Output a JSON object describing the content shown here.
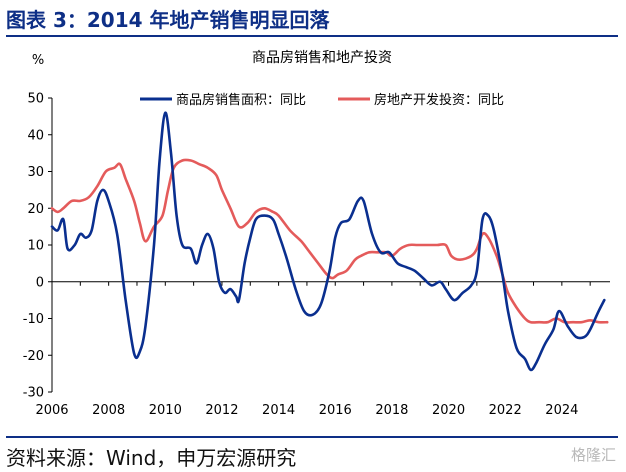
{
  "figure_title": "图表 3：2014 年地产销售明显回落",
  "source_note": "资料来源：Wind，申万宏源研究",
  "watermark": "格隆汇",
  "chart_data": {
    "type": "line",
    "title": "商品房销售和地产投资",
    "ylabel": "%",
    "xlabel": "",
    "ylim": [
      -30,
      50
    ],
    "xlim": [
      2006,
      2025.7
    ],
    "yticks": [
      50,
      40,
      30,
      20,
      10,
      0,
      -10,
      -20,
      -30
    ],
    "xticks": [
      "2006",
      "2008",
      "2010",
      "2012",
      "2014",
      "2016",
      "2018",
      "2020",
      "2022",
      "2024"
    ],
    "grid": false,
    "legend_position": "top",
    "colors": {
      "sales": "#0a2f8f",
      "investment": "#e45b5b",
      "axis": "#000000",
      "title_blue": "#0e2f86"
    },
    "series": [
      {
        "name": "商品房销售面积：同比",
        "points": [
          [
            2006.0,
            15
          ],
          [
            2006.2,
            14
          ],
          [
            2006.4,
            17
          ],
          [
            2006.55,
            9
          ],
          [
            2006.8,
            10
          ],
          [
            2007.0,
            13
          ],
          [
            2007.2,
            12
          ],
          [
            2007.4,
            14
          ],
          [
            2007.6,
            22
          ],
          [
            2007.8,
            25
          ],
          [
            2008.0,
            22
          ],
          [
            2008.3,
            13
          ],
          [
            2008.6,
            -5
          ],
          [
            2008.9,
            -19.5
          ],
          [
            2009.1,
            -19
          ],
          [
            2009.3,
            -12
          ],
          [
            2009.6,
            10
          ],
          [
            2009.8,
            33
          ],
          [
            2010.0,
            46
          ],
          [
            2010.2,
            35
          ],
          [
            2010.4,
            18
          ],
          [
            2010.6,
            10
          ],
          [
            2010.9,
            9
          ],
          [
            2011.1,
            5
          ],
          [
            2011.3,
            10
          ],
          [
            2011.5,
            13
          ],
          [
            2011.7,
            9
          ],
          [
            2011.9,
            0
          ],
          [
            2012.1,
            -3
          ],
          [
            2012.3,
            -2
          ],
          [
            2012.5,
            -4
          ],
          [
            2012.6,
            -5
          ],
          [
            2012.8,
            5
          ],
          [
            2013.0,
            12
          ],
          [
            2013.2,
            17
          ],
          [
            2013.5,
            18
          ],
          [
            2013.8,
            17
          ],
          [
            2014.0,
            13
          ],
          [
            2014.3,
            6
          ],
          [
            2014.6,
            -2
          ],
          [
            2014.9,
            -8
          ],
          [
            2015.2,
            -9
          ],
          [
            2015.5,
            -6
          ],
          [
            2015.8,
            3
          ],
          [
            2016.0,
            12
          ],
          [
            2016.2,
            16
          ],
          [
            2016.5,
            17
          ],
          [
            2016.8,
            22
          ],
          [
            2017.0,
            22
          ],
          [
            2017.3,
            13
          ],
          [
            2017.6,
            8
          ],
          [
            2017.9,
            8
          ],
          [
            2018.2,
            5
          ],
          [
            2018.5,
            4
          ],
          [
            2018.8,
            3
          ],
          [
            2019.1,
            1
          ],
          [
            2019.4,
            -1
          ],
          [
            2019.7,
            0
          ],
          [
            2019.9,
            -2
          ],
          [
            2020.2,
            -5
          ],
          [
            2020.5,
            -3
          ],
          [
            2020.8,
            -1
          ],
          [
            2021.0,
            3
          ],
          [
            2021.2,
            17
          ],
          [
            2021.4,
            18
          ],
          [
            2021.6,
            14
          ],
          [
            2021.9,
            2
          ],
          [
            2022.1,
            -8
          ],
          [
            2022.4,
            -18
          ],
          [
            2022.7,
            -21
          ],
          [
            2022.9,
            -24
          ],
          [
            2023.1,
            -22
          ],
          [
            2023.4,
            -17
          ],
          [
            2023.7,
            -13
          ],
          [
            2023.9,
            -8
          ],
          [
            2024.2,
            -12
          ],
          [
            2024.5,
            -15
          ],
          [
            2024.8,
            -15
          ],
          [
            2025.0,
            -13
          ],
          [
            2025.3,
            -8
          ],
          [
            2025.5,
            -5
          ]
        ]
      },
      {
        "name": "房地产开发投资：同比",
        "points": [
          [
            2006.0,
            20
          ],
          [
            2006.2,
            19
          ],
          [
            2006.4,
            20
          ],
          [
            2006.7,
            22
          ],
          [
            2007.0,
            22
          ],
          [
            2007.3,
            23
          ],
          [
            2007.6,
            26
          ],
          [
            2007.9,
            30
          ],
          [
            2008.2,
            31
          ],
          [
            2008.4,
            32
          ],
          [
            2008.6,
            28
          ],
          [
            2008.9,
            22
          ],
          [
            2009.1,
            16
          ],
          [
            2009.3,
            11
          ],
          [
            2009.6,
            15
          ],
          [
            2009.9,
            18
          ],
          [
            2010.1,
            25
          ],
          [
            2010.3,
            31
          ],
          [
            2010.6,
            33
          ],
          [
            2010.9,
            33
          ],
          [
            2011.2,
            32
          ],
          [
            2011.5,
            31
          ],
          [
            2011.8,
            29
          ],
          [
            2012.0,
            25
          ],
          [
            2012.3,
            20
          ],
          [
            2012.6,
            15
          ],
          [
            2012.9,
            16
          ],
          [
            2013.2,
            19
          ],
          [
            2013.5,
            20
          ],
          [
            2013.8,
            19
          ],
          [
            2014.0,
            18
          ],
          [
            2014.4,
            14
          ],
          [
            2014.8,
            11
          ],
          [
            2015.1,
            8
          ],
          [
            2015.4,
            5
          ],
          [
            2015.7,
            2
          ],
          [
            2015.9,
            1
          ],
          [
            2016.1,
            2
          ],
          [
            2016.4,
            3
          ],
          [
            2016.7,
            6
          ],
          [
            2016.9,
            7
          ],
          [
            2017.2,
            8
          ],
          [
            2017.5,
            8
          ],
          [
            2017.8,
            8
          ],
          [
            2018.0,
            7
          ],
          [
            2018.3,
            9
          ],
          [
            2018.6,
            10
          ],
          [
            2018.9,
            10
          ],
          [
            2019.2,
            10
          ],
          [
            2019.6,
            10
          ],
          [
            2019.9,
            10
          ],
          [
            2020.1,
            7
          ],
          [
            2020.4,
            6
          ],
          [
            2020.8,
            7
          ],
          [
            2021.0,
            9
          ],
          [
            2021.2,
            13
          ],
          [
            2021.4,
            12
          ],
          [
            2021.7,
            7
          ],
          [
            2021.9,
            2
          ],
          [
            2022.1,
            -3
          ],
          [
            2022.4,
            -7
          ],
          [
            2022.7,
            -10
          ],
          [
            2022.9,
            -11
          ],
          [
            2023.2,
            -11
          ],
          [
            2023.5,
            -11
          ],
          [
            2023.8,
            -10
          ],
          [
            2024.1,
            -11
          ],
          [
            2024.4,
            -11
          ],
          [
            2024.7,
            -11
          ],
          [
            2025.0,
            -10.5
          ],
          [
            2025.3,
            -11
          ],
          [
            2025.6,
            -11
          ]
        ]
      }
    ]
  }
}
